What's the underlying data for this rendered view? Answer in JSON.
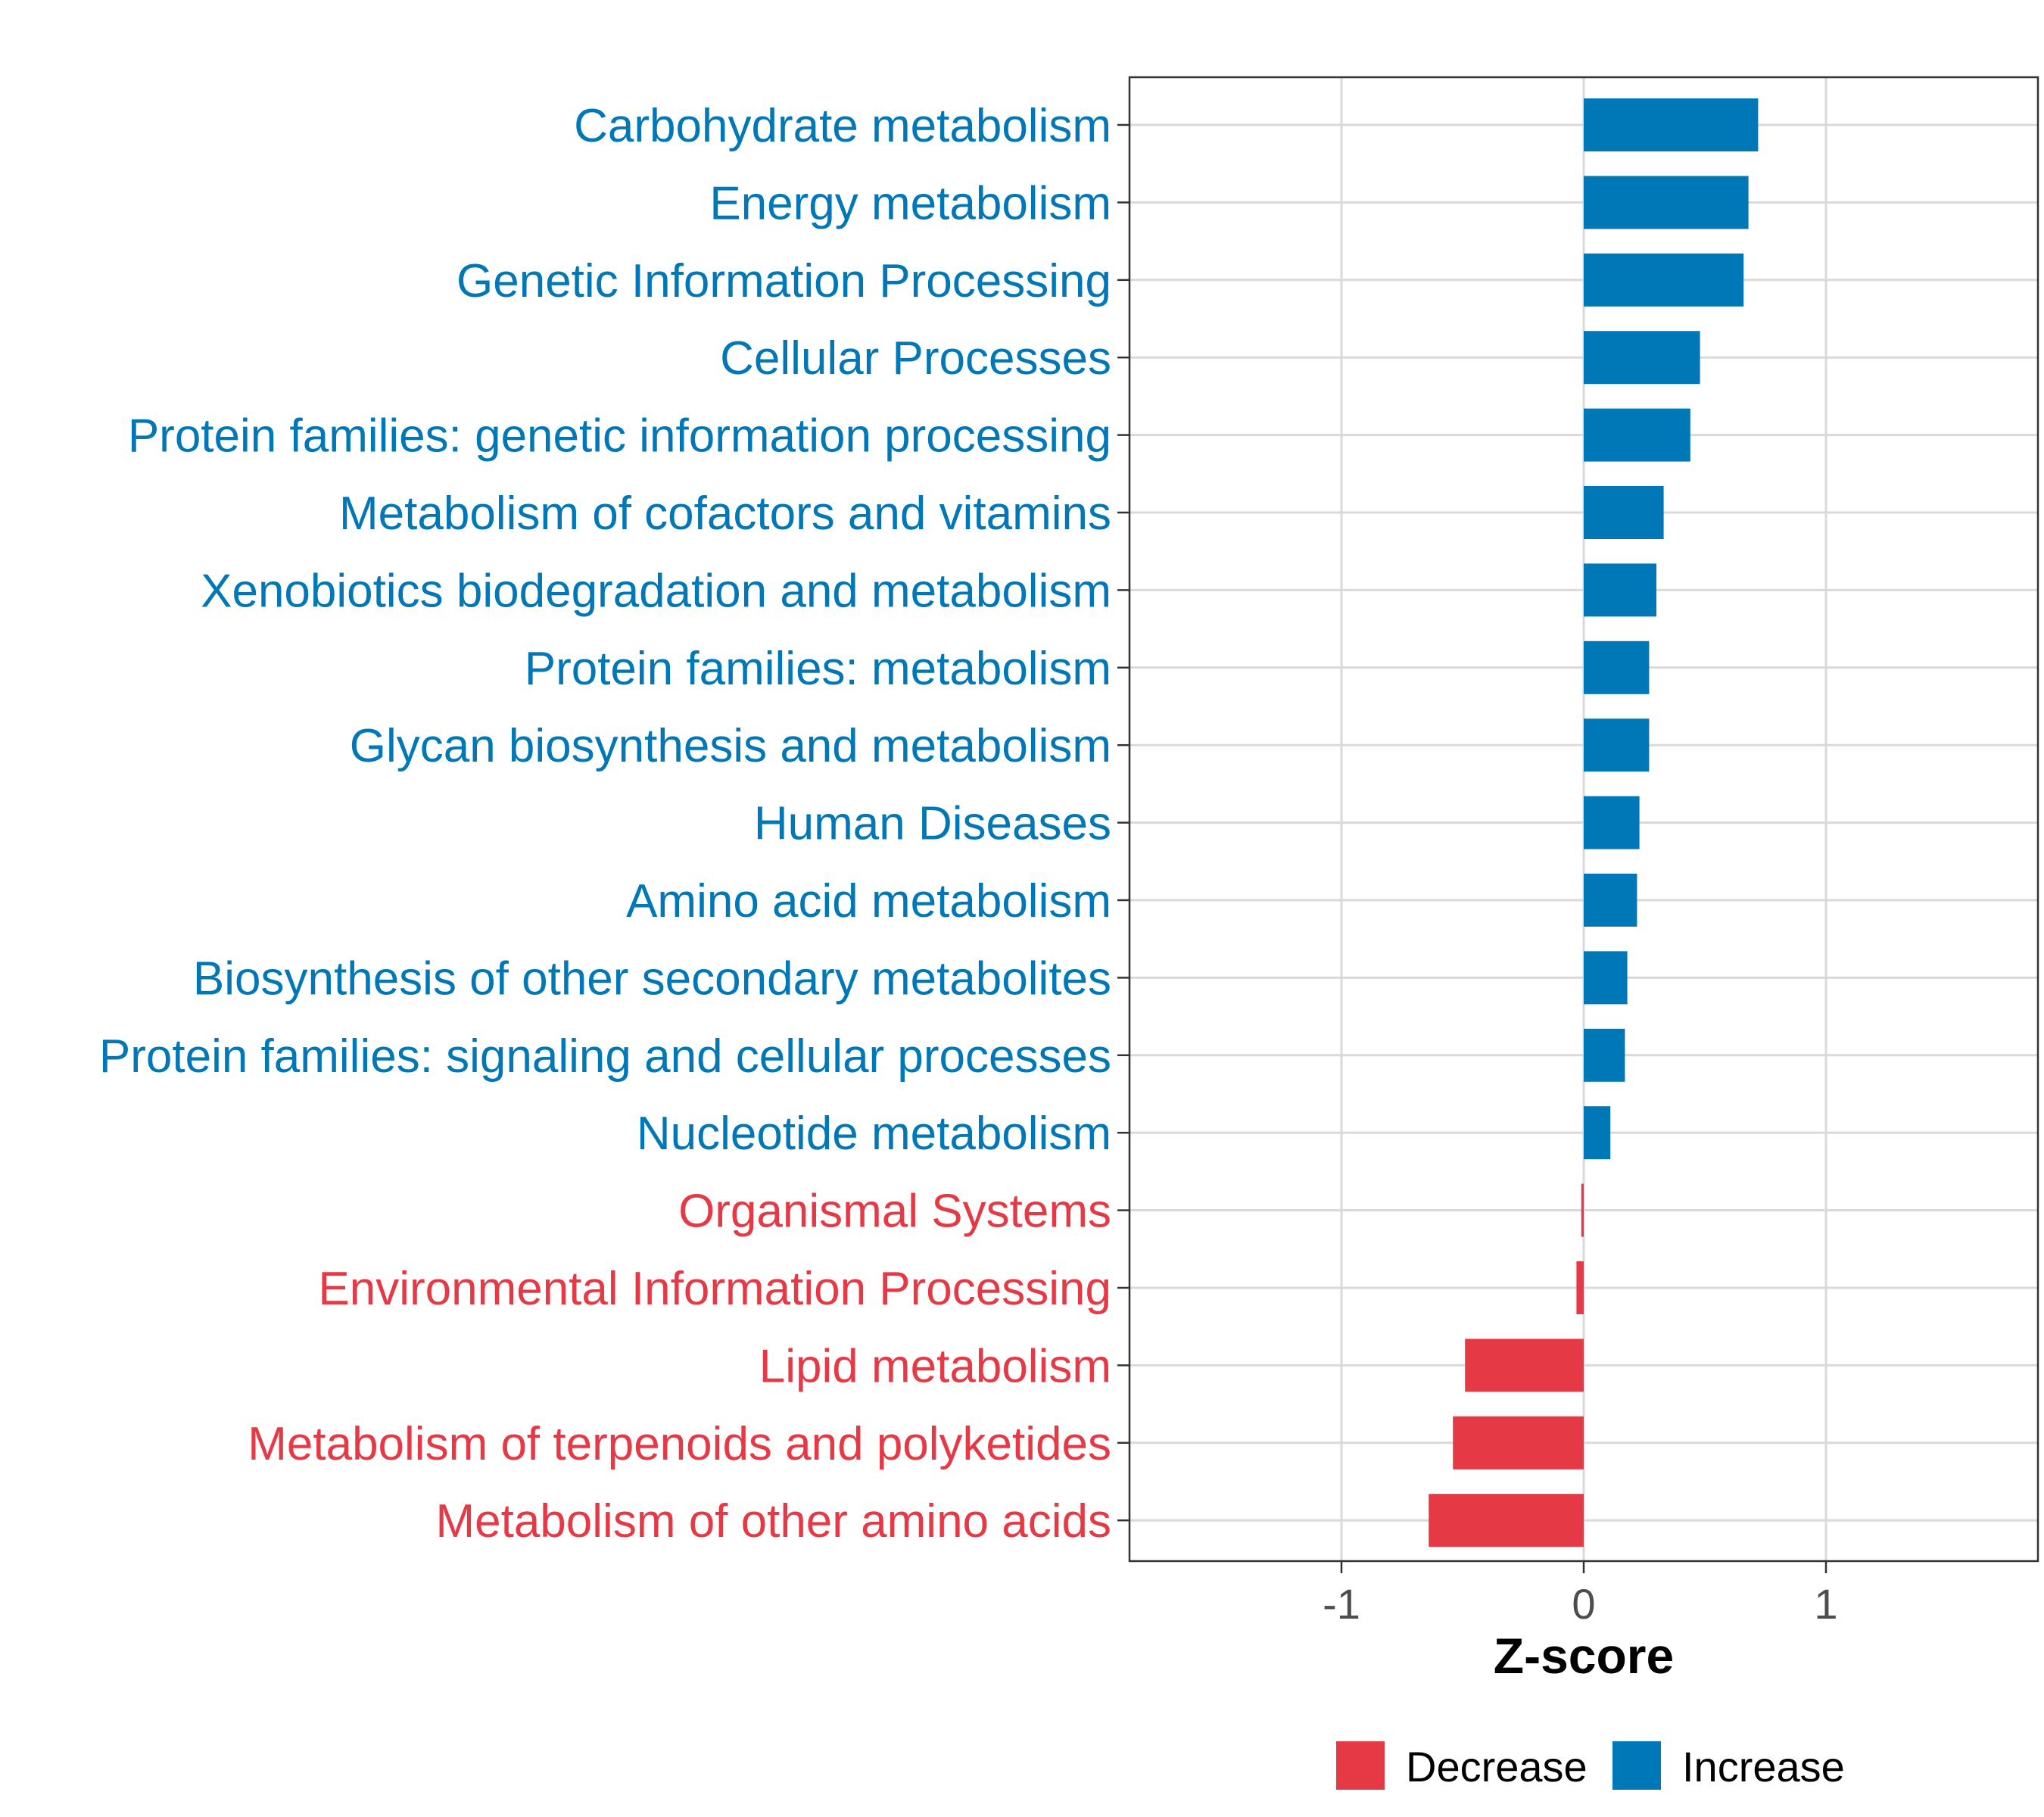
{
  "chart_data": {
    "type": "bar",
    "orientation": "horizontal",
    "title": "",
    "xlabel": "Z-score",
    "ylabel": "",
    "xlim": [
      -1.9,
      1.9
    ],
    "xticks": [
      -1,
      0,
      1
    ],
    "xtick_labels": [
      "-1",
      "0",
      "1"
    ],
    "grid": true,
    "categories": [
      "Carbohydrate metabolism",
      "Energy metabolism",
      "Genetic Information Processing",
      "Cellular Processes",
      "Protein families: genetic information processing",
      "Metabolism of cofactors and vitamins",
      "Xenobiotics biodegradation and metabolism",
      "Protein families: metabolism",
      "Glycan biosynthesis and metabolism",
      "Human Diseases",
      "Amino acid metabolism",
      "Biosynthesis of other secondary metabolites",
      "Protein families: signaling and cellular processes",
      "Nucleotide metabolism",
      "Organismal Systems",
      "Environmental Information Processing",
      "Lipid metabolism",
      "Metabolism of terpenoids and polyketides",
      "Metabolism of other amino acids"
    ],
    "values": [
      0.72,
      0.68,
      0.66,
      0.48,
      0.44,
      0.33,
      0.3,
      0.27,
      0.27,
      0.23,
      0.22,
      0.18,
      0.17,
      0.11,
      -0.01,
      -0.03,
      -0.49,
      -0.54,
      -0.64
    ],
    "groups": [
      "Increase",
      "Increase",
      "Increase",
      "Increase",
      "Increase",
      "Increase",
      "Increase",
      "Increase",
      "Increase",
      "Increase",
      "Increase",
      "Increase",
      "Increase",
      "Increase",
      "Decrease",
      "Decrease",
      "Decrease",
      "Decrease",
      "Decrease"
    ],
    "legend": {
      "position": "bottom",
      "entries": [
        {
          "label": "Decrease",
          "color": "#E63946"
        },
        {
          "label": "Increase",
          "color": "#0077B6"
        }
      ]
    }
  }
}
